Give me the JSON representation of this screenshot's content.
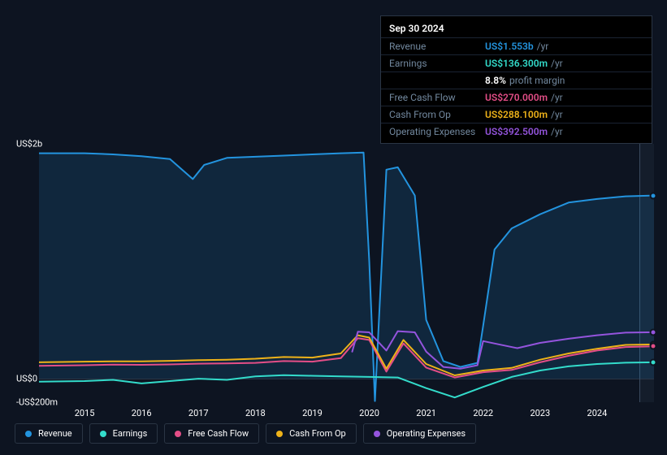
{
  "chart": {
    "type": "line",
    "background_color": "#0d1421",
    "grid_color": "#2a3544",
    "future_band_color": "rgba(120,140,160,0.08)",
    "axis_font_size": 11,
    "axis_color": "#ffffff",
    "y_axis": {
      "ticks": [
        {
          "label": "US$2b",
          "value": 2000
        },
        {
          "label": "US$0",
          "value": 0
        },
        {
          "label": "-US$200m",
          "value": -200
        }
      ],
      "min": -200,
      "max": 2000
    },
    "x_axis": {
      "ticks": [
        "2015",
        "2016",
        "2017",
        "2018",
        "2019",
        "2020",
        "2021",
        "2022",
        "2023",
        "2024"
      ],
      "min": 2014.2,
      "max": 2025.0,
      "cursor_x": 2024.75
    },
    "series": [
      {
        "id": "revenue",
        "name": "Revenue",
        "color": "#2394df",
        "area_fill": "rgba(35,148,223,0.15)",
        "data": [
          [
            2014.2,
            1920
          ],
          [
            2014.6,
            1920
          ],
          [
            2015,
            1920
          ],
          [
            2015.5,
            1910
          ],
          [
            2016,
            1895
          ],
          [
            2016.5,
            1870
          ],
          [
            2016.9,
            1700
          ],
          [
            2017.1,
            1820
          ],
          [
            2017.5,
            1880
          ],
          [
            2018,
            1890
          ],
          [
            2018.5,
            1900
          ],
          [
            2019,
            1910
          ],
          [
            2019.5,
            1920
          ],
          [
            2019.9,
            1925
          ],
          [
            2020.0,
            1000
          ],
          [
            2020.1,
            -190
          ],
          [
            2020.3,
            1780
          ],
          [
            2020.5,
            1800
          ],
          [
            2020.8,
            1560
          ],
          [
            2021.0,
            500
          ],
          [
            2021.3,
            150
          ],
          [
            2021.6,
            100
          ],
          [
            2021.9,
            135
          ],
          [
            2022.0,
            450
          ],
          [
            2022.2,
            1100
          ],
          [
            2022.5,
            1280
          ],
          [
            2023,
            1400
          ],
          [
            2023.5,
            1500
          ],
          [
            2024,
            1530
          ],
          [
            2024.5,
            1553
          ],
          [
            2025.0,
            1560
          ]
        ]
      },
      {
        "id": "earnings",
        "name": "Earnings",
        "color": "#33dccb",
        "data": [
          [
            2014.2,
            -25
          ],
          [
            2015,
            -20
          ],
          [
            2015.5,
            -10
          ],
          [
            2016,
            -40
          ],
          [
            2016.5,
            -20
          ],
          [
            2017,
            0
          ],
          [
            2017.5,
            -10
          ],
          [
            2018,
            20
          ],
          [
            2018.5,
            30
          ],
          [
            2019,
            25
          ],
          [
            2019.5,
            20
          ],
          [
            2020,
            15
          ],
          [
            2020.5,
            10
          ],
          [
            2021,
            -80
          ],
          [
            2021.5,
            -160
          ],
          [
            2022,
            -70
          ],
          [
            2022.5,
            15
          ],
          [
            2023,
            70
          ],
          [
            2023.5,
            105
          ],
          [
            2024,
            125
          ],
          [
            2024.5,
            136
          ],
          [
            2025.0,
            140
          ]
        ]
      },
      {
        "id": "fcf",
        "name": "Free Cash Flow",
        "color": "#e44e87",
        "data": [
          [
            2014.2,
            110
          ],
          [
            2015,
            115
          ],
          [
            2015.5,
            120
          ],
          [
            2016,
            118
          ],
          [
            2016.5,
            122
          ],
          [
            2017,
            128
          ],
          [
            2017.5,
            130
          ],
          [
            2018,
            135
          ],
          [
            2018.5,
            150
          ],
          [
            2019,
            145
          ],
          [
            2019.5,
            175
          ],
          [
            2019.8,
            345
          ],
          [
            2020.0,
            330
          ],
          [
            2020.3,
            60
          ],
          [
            2020.6,
            300
          ],
          [
            2021,
            95
          ],
          [
            2021.5,
            10
          ],
          [
            2022,
            55
          ],
          [
            2022.5,
            75
          ],
          [
            2023,
            140
          ],
          [
            2023.5,
            195
          ],
          [
            2024,
            240
          ],
          [
            2024.5,
            270
          ],
          [
            2025.0,
            275
          ]
        ]
      },
      {
        "id": "cfo",
        "name": "Cash From Op",
        "color": "#eeb219",
        "data": [
          [
            2014.2,
            140
          ],
          [
            2015,
            145
          ],
          [
            2015.5,
            148
          ],
          [
            2016,
            148
          ],
          [
            2016.5,
            152
          ],
          [
            2017,
            158
          ],
          [
            2017.5,
            162
          ],
          [
            2018,
            170
          ],
          [
            2018.5,
            185
          ],
          [
            2019,
            180
          ],
          [
            2019.5,
            215
          ],
          [
            2019.8,
            370
          ],
          [
            2020.0,
            350
          ],
          [
            2020.3,
            85
          ],
          [
            2020.6,
            330
          ],
          [
            2021,
            125
          ],
          [
            2021.5,
            28
          ],
          [
            2022,
            70
          ],
          [
            2022.5,
            92
          ],
          [
            2023,
            162
          ],
          [
            2023.5,
            215
          ],
          [
            2024,
            255
          ],
          [
            2024.5,
            288
          ],
          [
            2025.0,
            292
          ]
        ]
      },
      {
        "id": "opex",
        "name": "Operating Expenses",
        "color": "#9454dd",
        "data": [
          [
            2019.7,
            230
          ],
          [
            2019.8,
            400
          ],
          [
            2020.0,
            395
          ],
          [
            2020.3,
            240
          ],
          [
            2020.5,
            405
          ],
          [
            2020.8,
            395
          ],
          [
            2021.0,
            230
          ],
          [
            2021.3,
            100
          ],
          [
            2021.6,
            85
          ],
          [
            2021.9,
            115
          ],
          [
            2022.0,
            320
          ],
          [
            2022.3,
            290
          ],
          [
            2022.6,
            260
          ],
          [
            2023,
            305
          ],
          [
            2023.5,
            340
          ],
          [
            2024,
            370
          ],
          [
            2024.5,
            392
          ],
          [
            2025.0,
            396
          ]
        ]
      }
    ],
    "end_markers": [
      {
        "series": "revenue",
        "y": 1560,
        "color": "#2394df"
      },
      {
        "series": "opex",
        "y": 396,
        "color": "#9454dd"
      },
      {
        "series": "cfo",
        "y": 292,
        "color": "#eeb219"
      },
      {
        "series": "fcf",
        "y": 275,
        "color": "#e44e87"
      },
      {
        "series": "earnings",
        "y": 140,
        "color": "#33dccb"
      }
    ],
    "groups": {
      "pre_area_clip_x": 2018.2
    }
  },
  "tooltip": {
    "title": "Sep 30 2024",
    "rows": [
      {
        "label": "Revenue",
        "value": "US$1.553b",
        "unit": "/yr",
        "color": "#2394df"
      },
      {
        "label": "Earnings",
        "value": "US$136.300m",
        "unit": "/yr",
        "color": "#33dccb"
      },
      {
        "label": "",
        "value": "8.8%",
        "unit": "profit margin",
        "color": "#ffffff"
      },
      {
        "label": "Free Cash Flow",
        "value": "US$270.000m",
        "unit": "/yr",
        "color": "#e44e87"
      },
      {
        "label": "Cash From Op",
        "value": "US$288.100m",
        "unit": "/yr",
        "color": "#eeb219"
      },
      {
        "label": "Operating Expenses",
        "value": "US$392.500m",
        "unit": "/yr",
        "color": "#9454dd"
      }
    ],
    "label_color": "#71879d",
    "border_color": "#2a3544",
    "bg_color": "#000000"
  },
  "legend": {
    "items": [
      {
        "id": "revenue",
        "label": "Revenue",
        "color": "#2394df"
      },
      {
        "id": "earnings",
        "label": "Earnings",
        "color": "#33dccb"
      },
      {
        "id": "fcf",
        "label": "Free Cash Flow",
        "color": "#e44e87"
      },
      {
        "id": "cfo",
        "label": "Cash From Op",
        "color": "#eeb219"
      },
      {
        "id": "opex",
        "label": "Operating Expenses",
        "color": "#9454dd"
      }
    ],
    "border_color": "#2a3544"
  }
}
